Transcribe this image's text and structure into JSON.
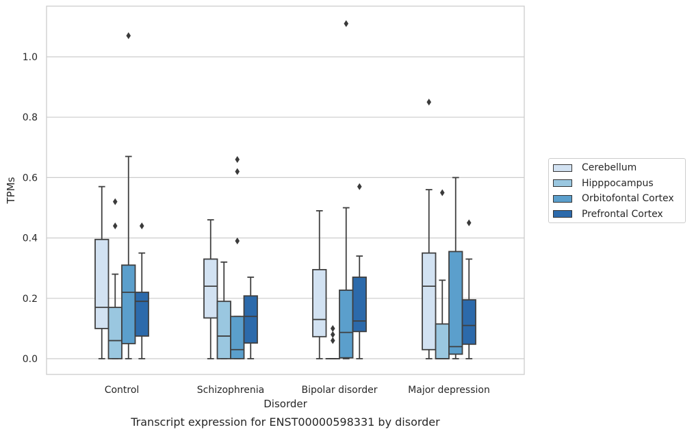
{
  "chart_data": {
    "type": "box",
    "caption": "Transcript expression for ENST00000598331 by disorder",
    "xlabel": "Disorder",
    "ylabel": "TPMs",
    "ylim": [
      -0.055,
      1.175
    ],
    "yticks": [
      "0.0",
      "0.2",
      "0.4",
      "0.6",
      "0.8",
      "1.0"
    ],
    "grid": true,
    "legend_position": "right",
    "categories": [
      "Control",
      "Schizophrenia",
      "Bipolar disorder",
      "Major depression"
    ],
    "series": [
      {
        "name": "Cerebellum",
        "color": "#d2e2f2",
        "boxes": [
          {
            "whislo": 0.0,
            "q1": 0.1,
            "med": 0.17,
            "q3": 0.395,
            "whishi": 0.57,
            "fliers": []
          },
          {
            "whislo": 0.0,
            "q1": 0.135,
            "med": 0.24,
            "q3": 0.33,
            "whishi": 0.46,
            "fliers": []
          },
          {
            "whislo": 0.0,
            "q1": 0.073,
            "med": 0.13,
            "q3": 0.295,
            "whishi": 0.49,
            "fliers": []
          },
          {
            "whislo": 0.0,
            "q1": 0.03,
            "med": 0.24,
            "q3": 0.35,
            "whishi": 0.56,
            "fliers": [
              0.85
            ]
          }
        ]
      },
      {
        "name": "Hipppocampus",
        "color": "#9ac7e0",
        "boxes": [
          {
            "whislo": 0.0,
            "q1": 0.0,
            "med": 0.06,
            "q3": 0.17,
            "whishi": 0.28,
            "fliers": [
              0.44,
              0.52
            ]
          },
          {
            "whislo": 0.0,
            "q1": 0.0,
            "med": 0.075,
            "q3": 0.19,
            "whishi": 0.32,
            "fliers": []
          },
          {
            "whislo": 0.0,
            "q1": 0.0,
            "med": 0.0,
            "q3": 0.0,
            "whishi": 0.0,
            "fliers": [
              0.06,
              0.08,
              0.1
            ]
          },
          {
            "whislo": 0.0,
            "q1": 0.0,
            "med": 0.0,
            "q3": 0.115,
            "whishi": 0.26,
            "fliers": [
              0.55
            ]
          }
        ]
      },
      {
        "name": "Orbitofontal Cortex",
        "color": "#5b9fcc",
        "boxes": [
          {
            "whislo": 0.0,
            "q1": 0.05,
            "med": 0.22,
            "q3": 0.31,
            "whishi": 0.67,
            "fliers": [
              1.07
            ]
          },
          {
            "whislo": 0.0,
            "q1": 0.0,
            "med": 0.03,
            "q3": 0.14,
            "whishi": 0.14,
            "fliers": [
              0.39,
              0.62,
              0.66
            ]
          },
          {
            "whislo": 0.0,
            "q1": 0.003,
            "med": 0.087,
            "q3": 0.227,
            "whishi": 0.5,
            "fliers": [
              1.11
            ]
          },
          {
            "whislo": 0.0,
            "q1": 0.015,
            "med": 0.04,
            "q3": 0.355,
            "whishi": 0.6,
            "fliers": []
          }
        ]
      },
      {
        "name": "Prefrontal Cortex",
        "color": "#2c6aab",
        "boxes": [
          {
            "whislo": 0.0,
            "q1": 0.075,
            "med": 0.19,
            "q3": 0.22,
            "whishi": 0.35,
            "fliers": [
              0.44
            ]
          },
          {
            "whislo": 0.0,
            "q1": 0.052,
            "med": 0.14,
            "q3": 0.208,
            "whishi": 0.27,
            "fliers": []
          },
          {
            "whislo": 0.0,
            "q1": 0.09,
            "med": 0.125,
            "q3": 0.27,
            "whishi": 0.34,
            "fliers": [
              0.57
            ]
          },
          {
            "whislo": 0.0,
            "q1": 0.048,
            "med": 0.11,
            "q3": 0.195,
            "whishi": 0.33,
            "fliers": [
              0.45
            ]
          }
        ]
      }
    ]
  }
}
